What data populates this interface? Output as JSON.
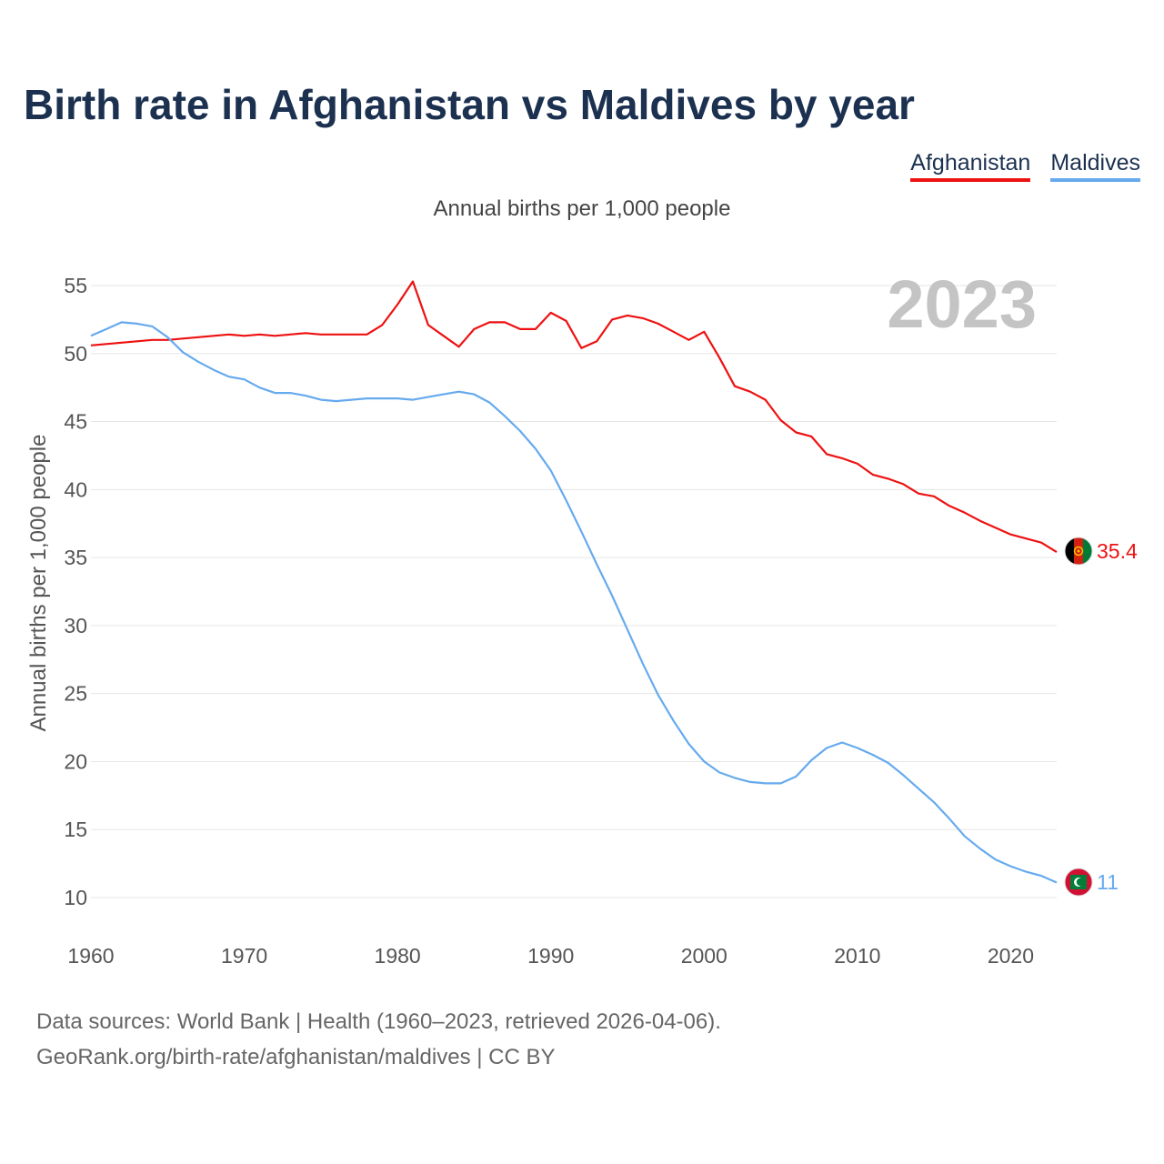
{
  "title": "Birth rate in Afghanistan vs Maldives by year",
  "subtitle": "Annual births per 1,000 people",
  "year_label": "2023",
  "legend": [
    {
      "name": "Afghanistan",
      "color": "#ee1111"
    },
    {
      "name": "Maldives",
      "color": "#66aaee"
    }
  ],
  "footer": {
    "line1": "Data sources: World Bank | Health (1960–2023, retrieved 2026-04-06).",
    "line2": "GeoRank.org/birth-rate/afghanistan/maldives | CC BY"
  },
  "chart_data": {
    "type": "line",
    "title": "Birth rate in Afghanistan vs Maldives by year",
    "ylabel": "Annual births per 1,000 people",
    "xlabel": "",
    "xlim": [
      1960,
      2023
    ],
    "ylim": [
      10,
      55
    ],
    "grid": true,
    "x_ticks": [
      1960,
      1970,
      1980,
      1990,
      2000,
      2010,
      2020
    ],
    "y_ticks": [
      10,
      15,
      20,
      25,
      30,
      35,
      40,
      45,
      50,
      55
    ],
    "x": [
      1960,
      1961,
      1962,
      1963,
      1964,
      1965,
      1966,
      1967,
      1968,
      1969,
      1970,
      1971,
      1972,
      1973,
      1974,
      1975,
      1976,
      1977,
      1978,
      1979,
      1980,
      1981,
      1982,
      1983,
      1984,
      1985,
      1986,
      1987,
      1988,
      1989,
      1990,
      1991,
      1992,
      1993,
      1994,
      1995,
      1996,
      1997,
      1998,
      1999,
      2000,
      2001,
      2002,
      2003,
      2004,
      2005,
      2006,
      2007,
      2008,
      2009,
      2010,
      2011,
      2012,
      2013,
      2014,
      2015,
      2016,
      2017,
      2018,
      2019,
      2020,
      2021,
      2022,
      2023
    ],
    "series": [
      {
        "name": "Afghanistan",
        "color": "#ee1111",
        "end_label": "35.4",
        "values": [
          50.6,
          50.7,
          50.8,
          50.9,
          51.0,
          51.0,
          51.1,
          51.2,
          51.3,
          51.4,
          51.3,
          51.4,
          51.3,
          51.4,
          51.5,
          51.4,
          51.4,
          51.4,
          51.4,
          52.1,
          53.6,
          55.3,
          52.1,
          51.3,
          50.5,
          51.8,
          52.3,
          52.3,
          51.8,
          51.8,
          53.0,
          52.4,
          50.4,
          50.9,
          52.5,
          52.8,
          52.6,
          52.2,
          51.6,
          51.0,
          51.6,
          49.7,
          47.6,
          47.2,
          46.6,
          45.1,
          44.2,
          43.9,
          42.6,
          42.3,
          41.9,
          41.1,
          40.8,
          40.4,
          39.7,
          39.5,
          38.8,
          38.3,
          37.7,
          37.2,
          36.7,
          36.4,
          36.1,
          35.4
        ]
      },
      {
        "name": "Maldives",
        "color": "#66aaee",
        "end_label": "11",
        "values": [
          51.3,
          51.8,
          52.3,
          52.2,
          52.0,
          51.2,
          50.1,
          49.4,
          48.8,
          48.3,
          48.1,
          47.5,
          47.1,
          47.1,
          46.9,
          46.6,
          46.5,
          46.6,
          46.7,
          46.7,
          46.7,
          46.6,
          46.8,
          47.0,
          47.2,
          47.0,
          46.4,
          45.4,
          44.3,
          43.0,
          41.4,
          39.2,
          36.9,
          34.5,
          32.2,
          29.7,
          27.2,
          24.9,
          23.0,
          21.3,
          20.0,
          19.2,
          18.8,
          18.5,
          18.4,
          18.4,
          18.9,
          20.1,
          21.0,
          21.4,
          21.0,
          20.5,
          19.9,
          19.0,
          18.0,
          17.0,
          15.8,
          14.5,
          13.6,
          12.8,
          12.3,
          11.9,
          11.6,
          11.1
        ]
      }
    ]
  }
}
